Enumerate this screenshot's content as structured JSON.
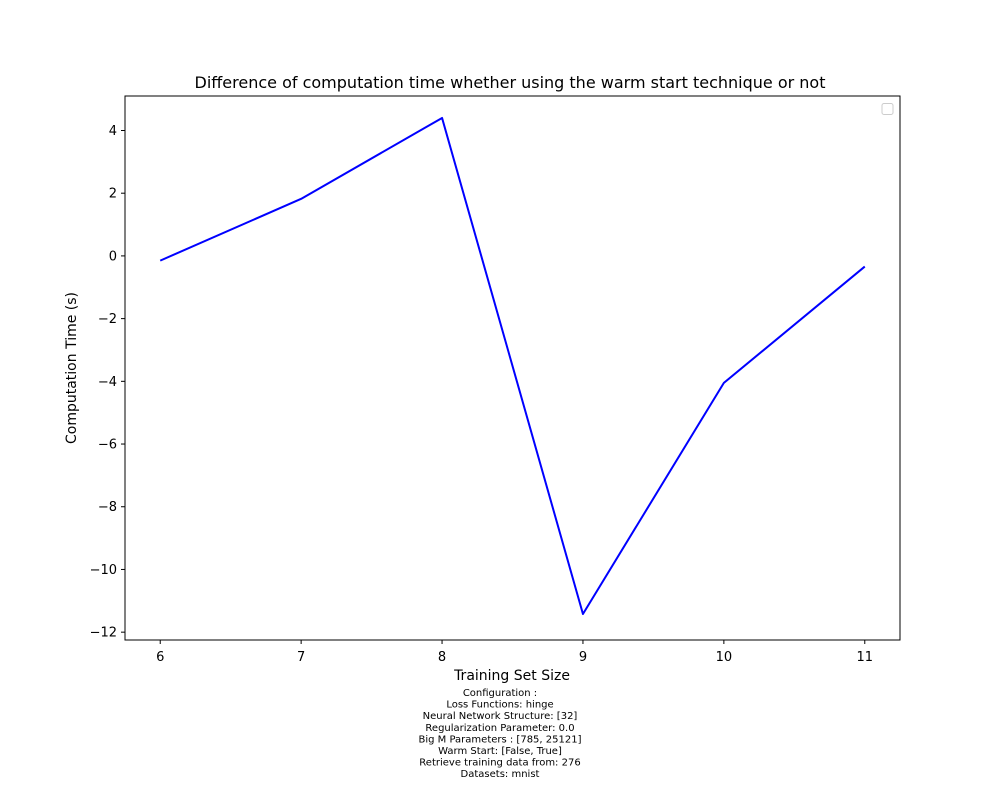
{
  "chart_data": {
    "type": "line",
    "title": "Difference of computation time whether using the warm start technique or not",
    "xlabel": "Training Set Size",
    "ylabel": "Computation Time (s)",
    "xlim": [
      5.75,
      11.25
    ],
    "ylim": [
      -12.25,
      5.1
    ],
    "x_ticks": [
      6,
      7,
      8,
      9,
      10,
      11
    ],
    "x_tick_labels": [
      "6",
      "7",
      "8",
      "9",
      "10",
      "11"
    ],
    "y_ticks": [
      4,
      2,
      0,
      -2,
      -4,
      -6,
      -8,
      -10,
      -12
    ],
    "y_tick_labels": [
      "4",
      "2",
      "0",
      "−2",
      "−4",
      "−6",
      "−8",
      "−10",
      "−12"
    ],
    "grid": false,
    "legend": {
      "position": "top-right",
      "entries": []
    },
    "series": [
      {
        "color": "#0000ff",
        "x": [
          6,
          7,
          8,
          9,
          10,
          11
        ],
        "y": [
          -0.15,
          1.82,
          4.4,
          -11.42,
          -4.05,
          -0.34
        ]
      }
    ],
    "caption_lines": [
      "Configuration :",
      "Loss Functions: hinge",
      "Neural Network Structure: [32]",
      "Regularization Parameter: 0.0",
      "Big M Parameters : [785, 25121]",
      "Warm Start: [False, True]",
      "Retrieve training data from: 276",
      "Datasets: mnist"
    ]
  }
}
